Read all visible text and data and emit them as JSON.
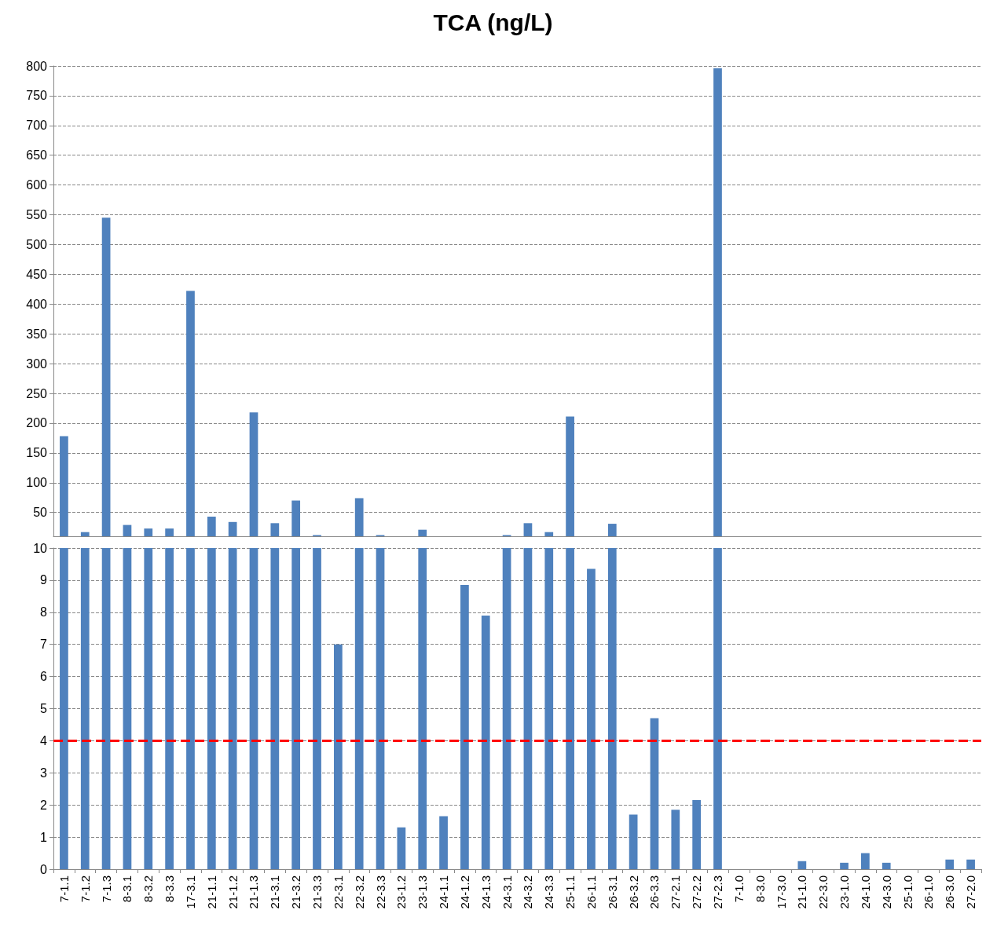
{
  "chart_data": [
    {
      "type": "bar",
      "title": "TCA (ng/L)",
      "categories": [
        null,
        null,
        null,
        null,
        null,
        null,
        null,
        null,
        null,
        null,
        null,
        null,
        null,
        null,
        null,
        null,
        null,
        null,
        null,
        null,
        null,
        null,
        null,
        null,
        null,
        null,
        null,
        null,
        null,
        null,
        null,
        null,
        null,
        null,
        null,
        null,
        null,
        null,
        null,
        null,
        null,
        null,
        null,
        null
      ],
      "series": [
        {
          "color": "#4f81bd",
          "values": [
            178,
            17,
            545,
            29,
            23,
            23,
            422,
            43,
            34,
            218,
            32,
            70,
            12,
            null,
            74,
            12,
            null,
            21,
            null,
            null,
            null,
            12,
            32,
            17,
            211,
            null,
            31,
            null,
            null,
            null,
            null,
            796,
            null,
            null,
            null,
            null,
            null,
            null,
            null,
            null,
            null,
            null,
            null,
            null
          ]
        }
      ],
      "ylim": [
        10,
        800
      ],
      "yticks": [
        50,
        100,
        150,
        200,
        250,
        300,
        350,
        400,
        450,
        500,
        550,
        600,
        650,
        700,
        750,
        800
      ],
      "grid": "y",
      "tick_labels": "y"
    },
    {
      "type": "bar",
      "categories": [
        "7-1.1",
        "7-1.2",
        "7-1.3",
        "8-3.1",
        "8-3.2",
        "8-3.3",
        "17-3.1",
        "21-1.1",
        "21-1.2",
        "21-1.3",
        "21-3.1",
        "21-3.2",
        "21-3.3",
        "22-3.1",
        "22-3.2",
        "22-3.3",
        "23-1.2",
        "23-1.3",
        "24-1.1",
        "24-1.2",
        "24-1.3",
        "24-3.1",
        "24-3.2",
        "24-3.3",
        "25-1.1",
        "26-1.1",
        "26-3.1",
        "26-3.2",
        "26-3.3",
        "27-2.1",
        "27-2.2",
        "27-2.3",
        "7-1.0",
        "8-3.0",
        "17-3.0",
        "21-1.0",
        "22-3.0",
        "23-1.0",
        "24-1.0",
        "24-3.0",
        "25-1.0",
        "26-1.0",
        "26-3.0",
        "27-2.0"
      ],
      "series": [
        {
          "color": "#4f81bd",
          "values": [
            10,
            10,
            10,
            10,
            10,
            10,
            10,
            10,
            10,
            10,
            10,
            10,
            10,
            7,
            10,
            10,
            1.3,
            10,
            1.65,
            8.85,
            7.9,
            10,
            10,
            10,
            10,
            9.35,
            10,
            1.7,
            4.7,
            1.85,
            2.15,
            10,
            0,
            0,
            0,
            0.25,
            0,
            0.2,
            0.5,
            0.2,
            0,
            0,
            0.3,
            0.3
          ]
        }
      ],
      "ylim": [
        0,
        10
      ],
      "yticks": [
        0,
        1,
        2,
        3,
        4,
        5,
        6,
        7,
        8,
        9,
        10
      ],
      "grid": "y",
      "ref_lines": [
        {
          "axis": "y",
          "value": 4,
          "color": "#ff0000",
          "line_style": "dashed"
        }
      ]
    }
  ]
}
